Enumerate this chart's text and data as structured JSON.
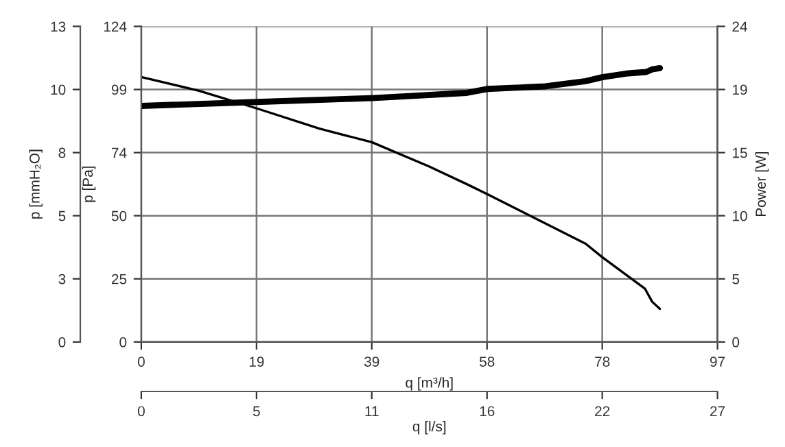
{
  "chart_data": {
    "type": "line",
    "xlabel": "q [m³/h]",
    "ylabel": "p [Pa]",
    "y2label": "Power [W]",
    "y3label": "p [mmH₂O]",
    "x2label": "q [l/s]",
    "series": [
      {
        "color": "#000000",
        "x": [
          0,
          9.7,
          19.4,
          30,
          38.8,
          48.5,
          54.8,
          58.2,
          74.8,
          77.6,
          84.8,
          86,
          87.3
        ],
        "values": [
          104.1,
          98.7,
          91.8,
          83.8,
          78.5,
          68.9,
          62.0,
          58.1,
          38.6,
          33.3,
          20.9,
          15.8,
          13.0
        ]
      },
      {
        "color": "#000000",
        "axis": "y2",
        "x": [
          0,
          19.4,
          38.8,
          54.8,
          58.2,
          68,
          74.8,
          77.6,
          82,
          85,
          86,
          87.3
        ],
        "values": [
          18.1,
          18.4,
          18.7,
          19.1,
          19.4,
          19.6,
          20.0,
          20.3,
          20.6,
          20.7,
          20.9,
          21.0
        ]
      }
    ],
    "xlim": [
      0,
      97
    ],
    "xticks": [
      0,
      {
        "value": 19.4,
        "label": "19"
      },
      {
        "value": 38.8,
        "label": "39"
      },
      {
        "value": 58.2,
        "label": "58"
      },
      {
        "value": 77.6,
        "label": "78"
      },
      97
    ],
    "ylim": [
      0,
      124
    ],
    "yticks": [
      0,
      {
        "value": 24.8,
        "label": "25"
      },
      {
        "value": 49.6,
        "label": "50"
      },
      {
        "value": 74.4,
        "label": "74"
      },
      {
        "value": 99.2,
        "label": "99"
      },
      124
    ],
    "y2lim": [
      0,
      24.2
    ],
    "y2ticks": [
      0,
      {
        "value": 4.84,
        "label": "5"
      },
      {
        "value": 9.68,
        "label": "10"
      },
      {
        "value": 14.52,
        "label": "15"
      },
      {
        "value": 19.36,
        "label": "19"
      },
      {
        "value": 24.2,
        "label": "24"
      }
    ],
    "y3lim": [
      0,
      12.64
    ],
    "y3ticks": [
      0,
      {
        "value": 2.528,
        "label": "3"
      },
      {
        "value": 5.056,
        "label": "5"
      },
      {
        "value": 7.584,
        "label": "8"
      },
      {
        "value": 10.112,
        "label": "10"
      },
      {
        "value": 12.64,
        "label": "13"
      }
    ],
    "x2lim": [
      0,
      26.94
    ],
    "x2ticks": [
      0,
      {
        "value": 5.388,
        "label": "5"
      },
      {
        "value": 10.776,
        "label": "11"
      },
      {
        "value": 16.164,
        "label": "16"
      },
      {
        "value": 21.552,
        "label": "22"
      },
      {
        "value": 26.94,
        "label": "27"
      }
    ],
    "grid": true,
    "marker": "none",
    "line_style": "solid"
  }
}
